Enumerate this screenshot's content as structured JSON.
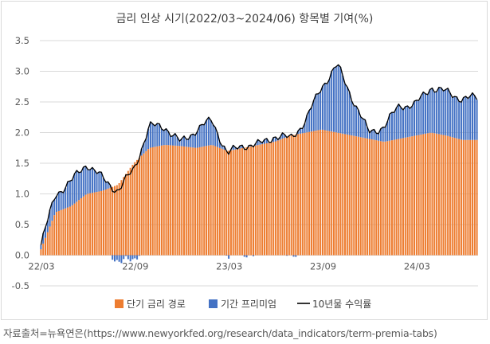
{
  "source": {
    "label": "자료출처=뉴욕연은",
    "url": "(https://www.newyorkfed.org/research/data_indicators/term-premia-tabs)"
  },
  "chart_data": {
    "type": "bar",
    "title": "금리 인상 시기(2022/03~2024/06) 항목별 기여(%)",
    "xlabel": "",
    "ylabel": "",
    "ylim": [
      -0.5,
      3.5
    ],
    "y_ticks": [
      "-0.5",
      "0.0",
      "0.5",
      "1.0",
      "1.5",
      "2.0",
      "2.5",
      "3.0",
      "3.5"
    ],
    "x_ticks": [
      "22/03",
      "22/09",
      "23/03",
      "23/09",
      "24/03"
    ],
    "x_range": [
      "2022-03",
      "2024-06"
    ],
    "legend_position": "bottom",
    "grid": true,
    "colors": {
      "short_rate": "#ED7D31",
      "term_premium": "#4472C4",
      "yield": "#000000"
    },
    "series": [
      {
        "name": "단기 금리 경로",
        "kind": "bar-stacked",
        "dates": [
          "2022-03",
          "2022-04",
          "2022-05",
          "2022-06",
          "2022-07",
          "2022-08",
          "2022-09",
          "2022-10",
          "2022-11",
          "2022-12",
          "2023-01",
          "2023-02",
          "2023-03",
          "2023-04",
          "2023-05",
          "2023-06",
          "2023-07",
          "2023-08",
          "2023-09",
          "2023-10",
          "2023-11",
          "2023-12",
          "2024-01",
          "2024-02",
          "2024-03",
          "2024-04",
          "2024-05",
          "2024-06"
        ],
        "values": [
          0.05,
          0.7,
          0.8,
          1.0,
          1.05,
          1.15,
          1.5,
          1.75,
          1.8,
          1.78,
          1.75,
          1.8,
          1.7,
          1.75,
          1.8,
          1.85,
          1.95,
          2.0,
          2.05,
          2.0,
          1.95,
          1.9,
          1.85,
          1.9,
          1.95,
          2.0,
          1.95,
          1.88
        ]
      },
      {
        "name": "기간 프리미엄",
        "kind": "bar-stacked",
        "dates": [
          "2022-03",
          "2022-04",
          "2022-05",
          "2022-06",
          "2022-07",
          "2022-08",
          "2022-09",
          "2022-10",
          "2022-11",
          "2022-12",
          "2023-01",
          "2023-02",
          "2023-03",
          "2023-04",
          "2023-05",
          "2023-06",
          "2023-07",
          "2023-08",
          "2023-09",
          "2023-10",
          "2023-11",
          "2023-12",
          "2024-01",
          "2024-02",
          "2024-03",
          "2024-04",
          "2024-05",
          "2024-06"
        ],
        "values": [
          0.05,
          0.3,
          0.4,
          0.5,
          0.2,
          -0.1,
          -0.1,
          0.35,
          0.3,
          0.05,
          0.3,
          0.4,
          -0.05,
          0.05,
          0.0,
          0.1,
          -0.05,
          0.2,
          0.7,
          1.1,
          0.6,
          0.1,
          0.25,
          0.55,
          0.5,
          0.75,
          0.7,
          0.68
        ]
      },
      {
        "name": "10년물 수익률",
        "kind": "line",
        "dates": [
          "2022-03",
          "2022-04",
          "2022-05",
          "2022-06",
          "2022-07",
          "2022-08",
          "2022-09",
          "2022-10",
          "2022-11",
          "2022-12",
          "2023-01",
          "2023-02",
          "2023-03",
          "2023-04",
          "2023-05",
          "2023-06",
          "2023-07",
          "2023-08",
          "2023-09",
          "2023-10",
          "2023-11",
          "2023-12",
          "2024-01",
          "2024-02",
          "2024-03",
          "2024-04",
          "2024-05",
          "2024-06"
        ],
        "values": [
          0.1,
          1.0,
          1.2,
          1.5,
          1.25,
          1.05,
          1.4,
          2.1,
          2.1,
          1.83,
          2.05,
          2.2,
          1.65,
          1.8,
          1.8,
          1.95,
          1.9,
          2.2,
          2.75,
          3.1,
          2.55,
          2.0,
          2.1,
          2.45,
          2.45,
          2.75,
          2.65,
          2.56
        ]
      }
    ]
  }
}
